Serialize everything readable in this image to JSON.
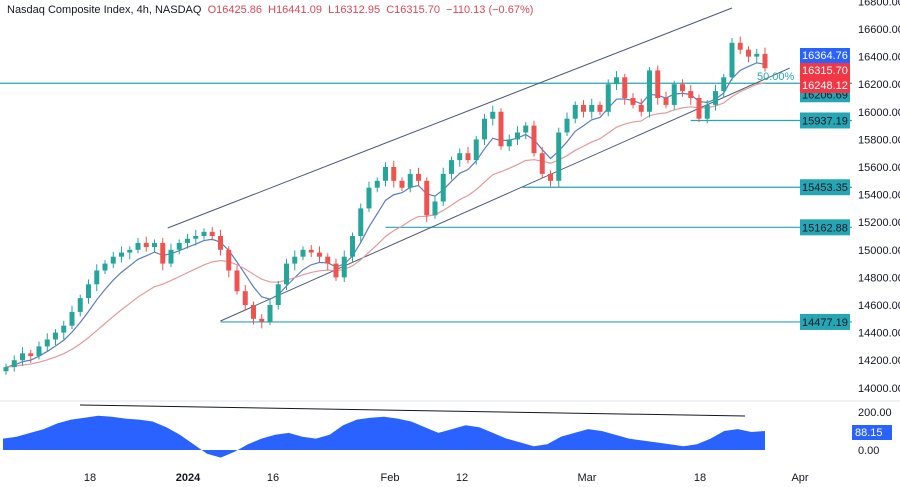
{
  "header": {
    "symbol": "Nasdaq Composite Index, 4h, NASDAQ",
    "open": "O16425.86",
    "high": "H16441.09",
    "low": "L16312.95",
    "close": "C16315.70",
    "change": "−110.13 (−0.67%)"
  },
  "chart_data": {
    "type": "candlestick",
    "title": "Nasdaq Composite Index, 4h, NASDAQ",
    "ylim": [
      13900,
      16800
    ],
    "y_ticks": [
      "16800.00",
      "16600.00",
      "16400.00",
      "16200.00",
      "16000.00",
      "15800.00",
      "15600.00",
      "15400.00",
      "15200.00",
      "15000.00",
      "14800.00",
      "14600.00",
      "14400.00",
      "14200.00",
      "14000.00"
    ],
    "x_ticks": [
      "18",
      "2024",
      "16",
      "Feb",
      "12",
      "Mar",
      "18",
      "Apr"
    ],
    "closes": [
      14150,
      14200,
      14250,
      14230,
      14300,
      14350,
      14400,
      14450,
      14550,
      14650,
      14750,
      14850,
      14900,
      14950,
      14980,
      15000,
      15050,
      15020,
      15050,
      14900,
      15000,
      15050,
      15080,
      15100,
      15130,
      15100,
      15000,
      14850,
      14700,
      14600,
      14500,
      14480,
      14600,
      14750,
      14900,
      14950,
      15000,
      14980,
      14950,
      14900,
      14800,
      14950,
      15100,
      15300,
      15450,
      15500,
      15600,
      15500,
      15450,
      15550,
      15500,
      15250,
      15350,
      15550,
      15650,
      15700,
      15650,
      15800,
      15950,
      16000,
      15750,
      15800,
      15850,
      15900,
      15700,
      15550,
      15500,
      15850,
      15950,
      16050,
      16000,
      16050,
      16000,
      16200,
      16250,
      16100,
      16050,
      16000,
      16300,
      16100,
      16050,
      16200,
      16150,
      16100,
      15950,
      16050,
      16150,
      16250,
      16500,
      16450,
      16400,
      16420,
      16315.7
    ],
    "colors": {
      "up": "#26a69a",
      "down": "#ef5350",
      "ma_fast": "#5b7dbd",
      "ma_slow": "#e39a9a",
      "level": "#26a6b5",
      "trendline": "#4a5a78",
      "oscillator": "#2962ff"
    },
    "levels": [
      {
        "price": 16206.69,
        "label": "16206.69"
      },
      {
        "price": 15937.19,
        "label": "15937.19"
      },
      {
        "price": 15453.35,
        "label": "15453.35"
      },
      {
        "price": 15162.88,
        "label": "15162.88"
      },
      {
        "price": 14477.19,
        "label": "14477.19"
      }
    ],
    "price_tags": [
      {
        "label": "16364.76",
        "color": "#2962ff"
      },
      {
        "label": "16315.70",
        "color": "#f23645"
      },
      {
        "label": "16248.12",
        "color": "#f23645"
      }
    ],
    "fib_label": "50.00%",
    "channel": {
      "upper": [
        [
          19.6,
          15158
        ],
        [
          88,
          16752
        ]
      ],
      "lower": [
        [
          26,
          14484
        ],
        [
          95,
          16317
        ]
      ]
    },
    "oscillator": {
      "ylim": [
        -50,
        230
      ],
      "y_ticks": [
        "200.00",
        "0.00"
      ],
      "last": "88.15",
      "values": [
        60,
        70,
        90,
        110,
        140,
        160,
        170,
        180,
        175,
        165,
        160,
        150,
        120,
        80,
        30,
        -20,
        -40,
        -10,
        30,
        60,
        80,
        90,
        70,
        60,
        80,
        130,
        160,
        170,
        175,
        165,
        150,
        120,
        90,
        110,
        130,
        120,
        90,
        60,
        40,
        20,
        30,
        70,
        90,
        110,
        100,
        80,
        60,
        50,
        40,
        30,
        20,
        30,
        60,
        100,
        110,
        95,
        100
      ]
    }
  }
}
